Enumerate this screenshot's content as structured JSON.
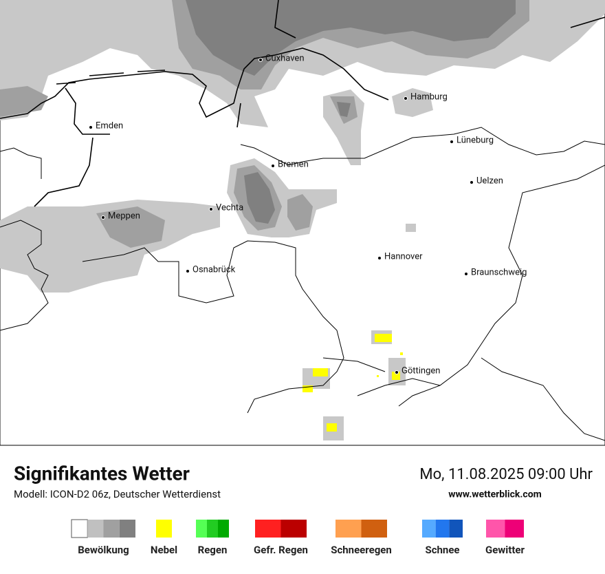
{
  "header": {
    "title": "Signifikantes Wetter",
    "model": "Modell: ICON-D2 06z, Deutscher Wetterdienst",
    "datetime": "Mo, 11.08.2025 09:00 Uhr",
    "website": "www.wetterblick.com"
  },
  "cities": [
    "Cuxhaven",
    "Hamburg",
    "Emden",
    "Lüneburg",
    "Bremen",
    "Uelzen",
    "Vechta",
    "Meppen",
    "Hannover",
    "Osnabrück",
    "Braunschweig",
    "Göttingen"
  ],
  "legend": [
    {
      "label": "Bewölkung",
      "colors": [
        "#ffffff",
        "#c0c0c0",
        "#a0a0a0",
        "#808080"
      ]
    },
    {
      "label": "Nebel",
      "colors": [
        "#ffff00"
      ]
    },
    {
      "label": "Regen",
      "colors": [
        "#55ff55",
        "#22cc22",
        "#00aa00"
      ]
    },
    {
      "label": "Gefr. Regen",
      "colors": [
        "#ff2020",
        "#bb0000"
      ]
    },
    {
      "label": "Schneeregen",
      "colors": [
        "#ffa050",
        "#d06010"
      ]
    },
    {
      "label": "Schnee",
      "colors": [
        "#55aaff",
        "#2277ee",
        "#1155bb"
      ]
    },
    {
      "label": "Gewitter",
      "colors": [
        "#ff55aa",
        "#ee0077"
      ]
    }
  ]
}
